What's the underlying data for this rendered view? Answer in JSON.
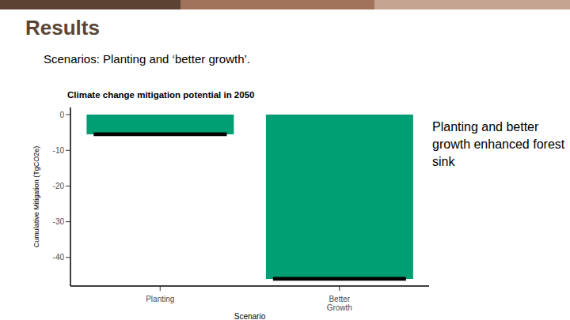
{
  "slide": {
    "title": "Results",
    "subtitle": "Scenarios: Planting and ‘better growth’.",
    "annotation": "Planting and better growth enhanced forest sink"
  },
  "chart_data": {
    "type": "bar",
    "title": "Climate change mitigation potential in 2050",
    "x_label": "Scenario",
    "y_label": "Cumulative Mitigation (TgCO2e)",
    "categories": [
      "Planting",
      "Better Growth"
    ],
    "values": [
      -5.5,
      -46
    ],
    "errors": [
      0.2,
      0.2
    ],
    "color": "#009e73",
    "ylim": [
      -48,
      2
    ],
    "yticks": [
      0,
      -10,
      -20,
      -30,
      -40
    ],
    "grid": false
  }
}
